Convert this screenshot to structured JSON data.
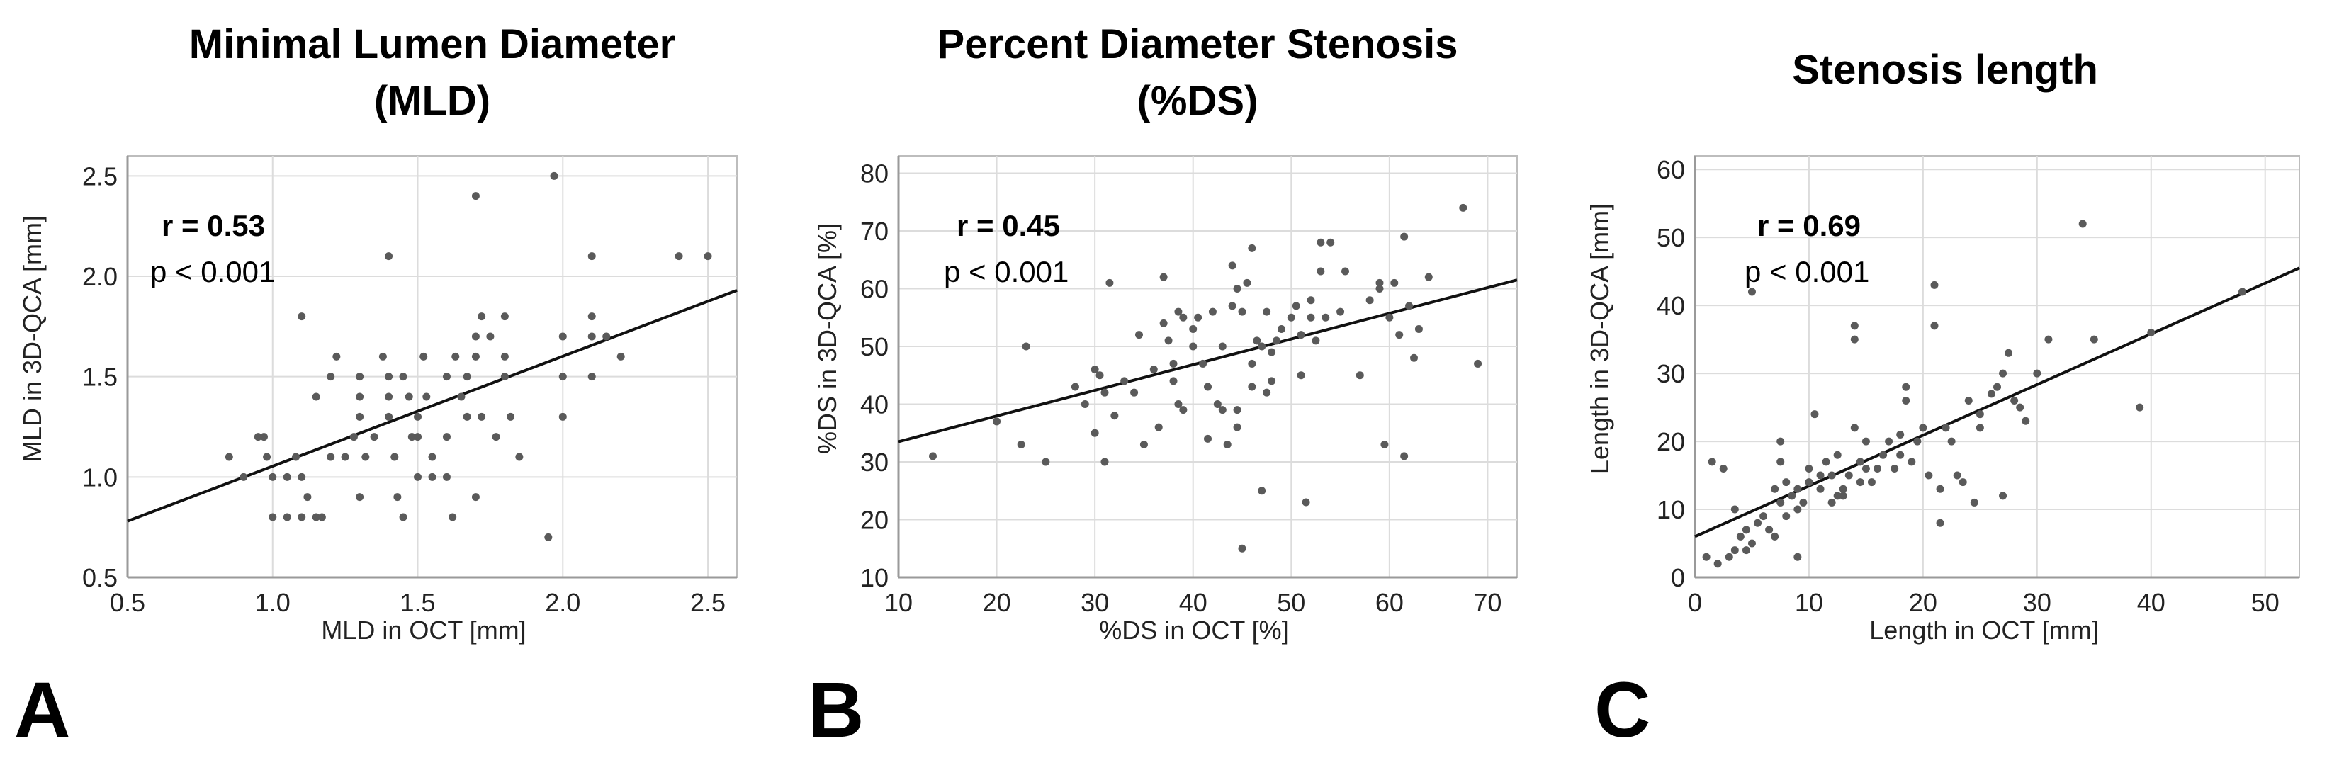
{
  "chart_data": [
    {
      "type": "scatter",
      "panel": "A",
      "title_lines": [
        "Minimal Lumen Diameter",
        "(MLD)"
      ],
      "xlabel": "MLD in OCT [mm]",
      "ylabel": "MLD in 3D-QCA [mm]",
      "xlim": [
        0.5,
        2.6
      ],
      "ylim": [
        0.5,
        2.6
      ],
      "xticks": [
        "0.5",
        "1.0",
        "1.5",
        "2.0",
        "2.5"
      ],
      "yticks": [
        "0.5",
        "1.0",
        "1.5",
        "2.0",
        "2.5"
      ],
      "r_label": "r = 0.53",
      "p_label": "p < 0.001",
      "fit": {
        "x": [
          0.5,
          2.6
        ],
        "y": [
          0.78,
          1.93
        ]
      },
      "points": [
        [
          0.85,
          1.1
        ],
        [
          0.9,
          1.0
        ],
        [
          0.95,
          1.2
        ],
        [
          0.97,
          1.2
        ],
        [
          0.98,
          1.1
        ],
        [
          1.0,
          0.8
        ],
        [
          1.0,
          1.0
        ],
        [
          1.05,
          0.8
        ],
        [
          1.05,
          1.0
        ],
        [
          1.08,
          1.1
        ],
        [
          1.1,
          1.8
        ],
        [
          1.1,
          1.0
        ],
        [
          1.1,
          0.8
        ],
        [
          1.12,
          0.9
        ],
        [
          1.15,
          1.4
        ],
        [
          1.15,
          0.8
        ],
        [
          1.17,
          0.8
        ],
        [
          1.2,
          1.5
        ],
        [
          1.2,
          1.1
        ],
        [
          1.22,
          1.6
        ],
        [
          1.25,
          1.1
        ],
        [
          1.28,
          1.2
        ],
        [
          1.3,
          1.5
        ],
        [
          1.3,
          1.4
        ],
        [
          1.3,
          1.3
        ],
        [
          1.3,
          0.9
        ],
        [
          1.32,
          1.1
        ],
        [
          1.35,
          1.2
        ],
        [
          1.38,
          1.6
        ],
        [
          1.4,
          2.1
        ],
        [
          1.4,
          1.5
        ],
        [
          1.4,
          1.4
        ],
        [
          1.4,
          1.3
        ],
        [
          1.42,
          1.1
        ],
        [
          1.43,
          0.9
        ],
        [
          1.45,
          0.8
        ],
        [
          1.45,
          1.5
        ],
        [
          1.47,
          1.4
        ],
        [
          1.48,
          1.2
        ],
        [
          1.5,
          1.3
        ],
        [
          1.5,
          1.2
        ],
        [
          1.5,
          1.0
        ],
        [
          1.52,
          1.6
        ],
        [
          1.53,
          1.4
        ],
        [
          1.55,
          1.1
        ],
        [
          1.55,
          1.0
        ],
        [
          1.6,
          1.5
        ],
        [
          1.6,
          1.2
        ],
        [
          1.6,
          1.0
        ],
        [
          1.62,
          0.8
        ],
        [
          1.63,
          1.6
        ],
        [
          1.65,
          1.4
        ],
        [
          1.67,
          1.5
        ],
        [
          1.67,
          1.3
        ],
        [
          1.7,
          2.4
        ],
        [
          1.7,
          1.7
        ],
        [
          1.7,
          1.6
        ],
        [
          1.7,
          0.9
        ],
        [
          1.72,
          1.8
        ],
        [
          1.72,
          1.3
        ],
        [
          1.75,
          1.7
        ],
        [
          1.77,
          1.2
        ],
        [
          1.8,
          1.8
        ],
        [
          1.8,
          1.6
        ],
        [
          1.8,
          1.5
        ],
        [
          1.82,
          1.3
        ],
        [
          1.85,
          1.1
        ],
        [
          1.95,
          0.7
        ],
        [
          1.97,
          2.5
        ],
        [
          2.0,
          1.7
        ],
        [
          2.0,
          1.5
        ],
        [
          2.0,
          1.3
        ],
        [
          2.1,
          2.1
        ],
        [
          2.1,
          1.8
        ],
        [
          2.1,
          1.7
        ],
        [
          2.1,
          1.5
        ],
        [
          2.15,
          1.7
        ],
        [
          2.2,
          1.6
        ],
        [
          2.4,
          2.1
        ],
        [
          2.5,
          2.1
        ]
      ]
    },
    {
      "type": "scatter",
      "panel": "B",
      "title_lines": [
        "Percent Diameter Stenosis",
        "(%DS)"
      ],
      "xlabel": "%DS in OCT [%]",
      "ylabel": "%DS in 3D-QCA [%]",
      "xlim": [
        10,
        73
      ],
      "ylim": [
        10,
        83
      ],
      "xticks": [
        "10",
        "20",
        "30",
        "40",
        "50",
        "60",
        "70"
      ],
      "yticks": [
        "10",
        "20",
        "30",
        "40",
        "50",
        "60",
        "70",
        "80"
      ],
      "r_label": "r = 0.45",
      "p_label": "p < 0.001",
      "fit": {
        "x": [
          10,
          73
        ],
        "y": [
          33.5,
          61.5
        ]
      },
      "points": [
        [
          13.5,
          31
        ],
        [
          20,
          37
        ],
        [
          22.5,
          33
        ],
        [
          23,
          50
        ],
        [
          25,
          30
        ],
        [
          28,
          43
        ],
        [
          29,
          40
        ],
        [
          30,
          35
        ],
        [
          30,
          46
        ],
        [
          30.5,
          45
        ],
        [
          31,
          30
        ],
        [
          31,
          42
        ],
        [
          31.5,
          61
        ],
        [
          32,
          38
        ],
        [
          33,
          44
        ],
        [
          34,
          42
        ],
        [
          34.5,
          52
        ],
        [
          35,
          33
        ],
        [
          36,
          46
        ],
        [
          36.5,
          36
        ],
        [
          37,
          62
        ],
        [
          37,
          54
        ],
        [
          37.5,
          51
        ],
        [
          38,
          47
        ],
        [
          38,
          44
        ],
        [
          38.5,
          40
        ],
        [
          38.5,
          56
        ],
        [
          39,
          39
        ],
        [
          39,
          55
        ],
        [
          40,
          50
        ],
        [
          40,
          53
        ],
        [
          40.5,
          55
        ],
        [
          41,
          47
        ],
        [
          41.5,
          34
        ],
        [
          41.5,
          43
        ],
        [
          42,
          56
        ],
        [
          42.5,
          40
        ],
        [
          43,
          39
        ],
        [
          43,
          50
        ],
        [
          43.5,
          33
        ],
        [
          44,
          57
        ],
        [
          44,
          64
        ],
        [
          44.5,
          39
        ],
        [
          44.5,
          60
        ],
        [
          44.5,
          36
        ],
        [
          45,
          56
        ],
        [
          45,
          15
        ],
        [
          45.5,
          61
        ],
        [
          46,
          47
        ],
        [
          46,
          43
        ],
        [
          46,
          67
        ],
        [
          46.5,
          51
        ],
        [
          47,
          25
        ],
        [
          47,
          50
        ],
        [
          47.5,
          42
        ],
        [
          47.5,
          56
        ],
        [
          48,
          44
        ],
        [
          48,
          49
        ],
        [
          48.5,
          51
        ],
        [
          49,
          53
        ],
        [
          50,
          55
        ],
        [
          50.5,
          57
        ],
        [
          51,
          45
        ],
        [
          51,
          52
        ],
        [
          51.5,
          23
        ],
        [
          52,
          55
        ],
        [
          52,
          58
        ],
        [
          52.5,
          51
        ],
        [
          53,
          68
        ],
        [
          53,
          63
        ],
        [
          53.5,
          55
        ],
        [
          54,
          68
        ],
        [
          55,
          56
        ],
        [
          55.5,
          63
        ],
        [
          57,
          45
        ],
        [
          58,
          58
        ],
        [
          59,
          61
        ],
        [
          59,
          60
        ],
        [
          59.5,
          33
        ],
        [
          60,
          55
        ],
        [
          60.5,
          61
        ],
        [
          61,
          52
        ],
        [
          61.5,
          69
        ],
        [
          61.5,
          31
        ],
        [
          62,
          57
        ],
        [
          62.5,
          48
        ],
        [
          63,
          53
        ],
        [
          64,
          62
        ],
        [
          67.5,
          74
        ],
        [
          69,
          47
        ]
      ]
    },
    {
      "type": "scatter",
      "panel": "C",
      "title_lines": [
        "Stenosis length"
      ],
      "xlabel": "Length in OCT [mm]",
      "ylabel": "Length in 3D-QCA [mm]",
      "xlim": [
        0,
        53
      ],
      "ylim": [
        0,
        62
      ],
      "xticks": [
        "0",
        "10",
        "20",
        "30",
        "40",
        "50"
      ],
      "yticks": [
        "0",
        "10",
        "20",
        "30",
        "40",
        "50",
        "60"
      ],
      "r_label": "r = 0.69",
      "p_label": "p < 0.001",
      "fit": {
        "x": [
          0,
          53
        ],
        "y": [
          6.0,
          45.5
        ]
      },
      "points": [
        [
          1,
          3
        ],
        [
          1.5,
          17
        ],
        [
          2,
          2
        ],
        [
          2.5,
          16
        ],
        [
          3,
          3
        ],
        [
          3.5,
          10
        ],
        [
          3.5,
          4
        ],
        [
          4,
          6
        ],
        [
          4.5,
          4
        ],
        [
          4.5,
          7
        ],
        [
          5,
          5
        ],
        [
          5,
          42
        ],
        [
          5.5,
          8
        ],
        [
          6,
          9
        ],
        [
          6.5,
          7
        ],
        [
          7,
          6
        ],
        [
          7,
          13
        ],
        [
          7.5,
          17
        ],
        [
          7.5,
          11
        ],
        [
          7.5,
          20
        ],
        [
          8,
          9
        ],
        [
          8,
          14
        ],
        [
          8.5,
          12
        ],
        [
          9,
          10
        ],
        [
          9,
          13
        ],
        [
          9,
          3
        ],
        [
          9.5,
          11
        ],
        [
          10,
          16
        ],
        [
          10,
          14
        ],
        [
          10.5,
          24
        ],
        [
          11,
          15
        ],
        [
          11,
          13
        ],
        [
          11.5,
          17
        ],
        [
          12,
          11
        ],
        [
          12,
          15
        ],
        [
          12.5,
          18
        ],
        [
          12.5,
          12
        ],
        [
          13,
          13
        ],
        [
          13,
          12
        ],
        [
          13.5,
          15
        ],
        [
          14,
          35
        ],
        [
          14,
          37
        ],
        [
          14,
          22
        ],
        [
          14.5,
          17
        ],
        [
          14.5,
          14
        ],
        [
          15,
          16
        ],
        [
          15,
          20
        ],
        [
          15.5,
          14
        ],
        [
          16,
          16
        ],
        [
          16.5,
          18
        ],
        [
          17,
          20
        ],
        [
          17.5,
          16
        ],
        [
          18,
          21
        ],
        [
          18,
          18
        ],
        [
          18.5,
          28
        ],
        [
          18.5,
          26
        ],
        [
          19,
          17
        ],
        [
          19.5,
          20
        ],
        [
          20,
          22
        ],
        [
          20.5,
          15
        ],
        [
          21,
          43
        ],
        [
          21,
          37
        ],
        [
          21.5,
          13
        ],
        [
          21.5,
          8
        ],
        [
          22,
          22
        ],
        [
          22.5,
          20
        ],
        [
          23,
          15
        ],
        [
          23.5,
          14
        ],
        [
          24,
          26
        ],
        [
          24.5,
          11
        ],
        [
          25,
          22
        ],
        [
          25,
          24
        ],
        [
          26,
          27
        ],
        [
          26.5,
          28
        ],
        [
          27,
          12
        ],
        [
          27,
          30
        ],
        [
          27.5,
          33
        ],
        [
          28,
          26
        ],
        [
          28.5,
          25
        ],
        [
          29,
          23
        ],
        [
          30,
          30
        ],
        [
          31,
          35
        ],
        [
          34,
          52
        ],
        [
          35,
          35
        ],
        [
          39,
          25
        ],
        [
          40,
          36
        ],
        [
          48,
          42
        ]
      ]
    }
  ],
  "panel_letters": [
    "A",
    "B",
    "C"
  ]
}
